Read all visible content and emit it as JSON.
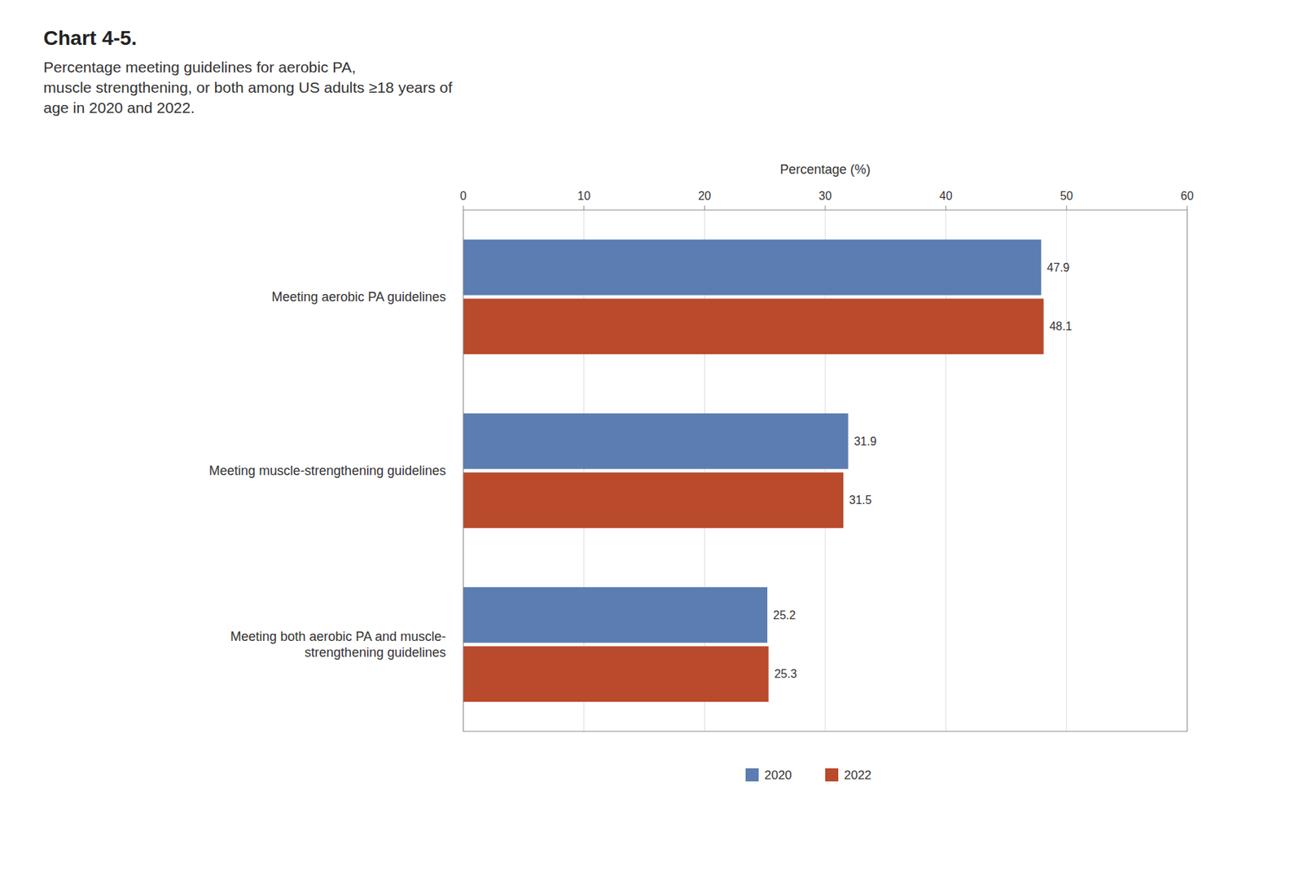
{
  "chart_data": {
    "type": "bar",
    "orientation": "horizontal",
    "title": "Chart 4-5.",
    "subtitle": "Percentage meeting guidelines for aerobic PA,\nmuscle strengthening, or both among US adults ≥18 years of\nage in 2020 and 2022.",
    "xlabel": "Percentage (%)",
    "categories": [
      "Meeting aerobic PA guidelines",
      "Meeting muscle-strengthening guidelines",
      "Meeting both aerobic PA and muscle-\nstrengthening guidelines"
    ],
    "series": [
      {
        "name": "2020",
        "color": "#5b7db1",
        "values": [
          47.9,
          31.9,
          25.2
        ]
      },
      {
        "name": "2022",
        "color": "#b94a2c",
        "values": [
          48.1,
          31.5,
          25.3
        ]
      }
    ],
    "xlim": [
      0,
      60
    ],
    "xticks": [
      0,
      10,
      20,
      30,
      40,
      50,
      60
    ],
    "grid": true,
    "legend": "bottom",
    "data_labels": true
  }
}
